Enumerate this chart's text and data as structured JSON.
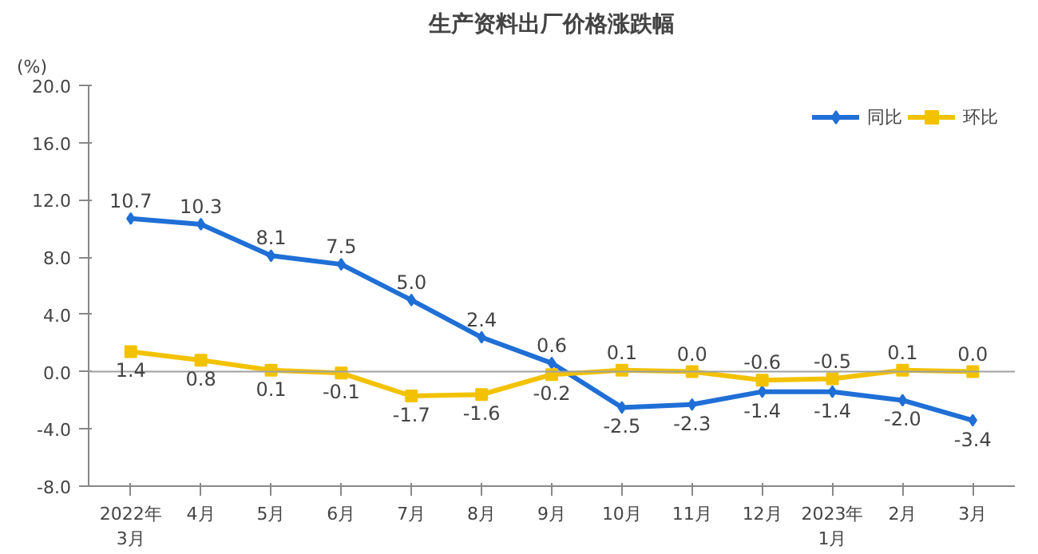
{
  "chart_data": {
    "type": "line",
    "title": "生产资料出厂价格涨跌幅",
    "ylabel": "(%)",
    "categories": [
      "2022年\n3月",
      "4月",
      "5月",
      "6月",
      "7月",
      "8月",
      "9月",
      "10月",
      "11月",
      "12月",
      "2023年\n1月",
      "2月",
      "3月"
    ],
    "series": [
      {
        "name": "同比",
        "color": "#1f6fd6",
        "marker": "diamond",
        "values": [
          10.7,
          10.3,
          8.1,
          7.5,
          5.0,
          2.4,
          0.6,
          -2.5,
          -2.3,
          -1.4,
          -1.4,
          -2.0,
          -3.4
        ],
        "value_labels": [
          "10.7",
          "10.3",
          "8.1",
          "7.5",
          "5.0",
          "2.4",
          "0.6",
          "-2.5",
          "-2.3",
          "-1.4",
          "-1.4",
          "-2.0",
          "-3.4"
        ]
      },
      {
        "name": "环比",
        "color": "#f2c200",
        "marker": "square",
        "values": [
          1.4,
          0.8,
          0.1,
          -0.1,
          -1.7,
          -1.6,
          -0.2,
          0.1,
          0.0,
          -0.6,
          -0.5,
          0.1,
          0.0
        ],
        "value_labels": [
          "1.4",
          "0.8",
          "0.1",
          "-0.1",
          "-1.7",
          "-1.6",
          "-0.2",
          "0.1",
          "0.0",
          "-0.6",
          "-0.5",
          "0.1",
          "0.0"
        ]
      }
    ],
    "ylim": [
      -8,
      20
    ],
    "yticks": [
      {
        "value": -8,
        "label": "-8.0"
      },
      {
        "value": -4,
        "label": "-4.0"
      },
      {
        "value": 0,
        "label": "0.0"
      },
      {
        "value": 4,
        "label": "4.0"
      },
      {
        "value": 8,
        "label": "8.0"
      },
      {
        "value": 12,
        "label": "12.0"
      },
      {
        "value": 16,
        "label": "16.0"
      },
      {
        "value": 20,
        "label": "20.0"
      }
    ],
    "ref_lines": [
      {
        "axis": "y",
        "value": 0,
        "color": "#a0a0a0"
      }
    ],
    "grid": false,
    "legend": "top right",
    "line_style": "solid"
  }
}
